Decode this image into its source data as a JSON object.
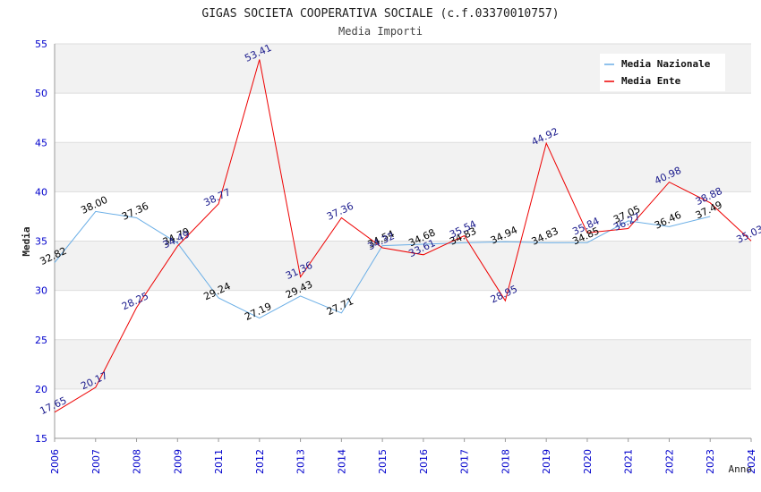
{
  "chart_data": {
    "type": "line",
    "title": "GIGAS SOCIETA COOPERATIVA SOCIALE (c.f.03370010757)",
    "subtitle": "Media Importi",
    "xlabel": "Anno",
    "ylabel": "Media",
    "ylim": [
      15,
      55
    ],
    "yticks": [
      15,
      20,
      25,
      30,
      35,
      40,
      45,
      50,
      55
    ],
    "categories": [
      "2006",
      "2007",
      "2008",
      "2009",
      "2011",
      "2012",
      "2013",
      "2014",
      "2015",
      "2016",
      "2017",
      "2018",
      "2019",
      "2020",
      "2021",
      "2022",
      "2023",
      "2024"
    ],
    "legend_position": "top-right",
    "series": [
      {
        "name": "Media Nazionale",
        "color": "#6aaee6",
        "label_color": "#000000",
        "values": [
          32.82,
          38.0,
          37.36,
          34.79,
          29.24,
          27.19,
          29.43,
          27.71,
          34.54,
          34.68,
          34.83,
          34.94,
          34.83,
          34.85,
          37.05,
          36.46,
          37.49,
          null
        ],
        "labels": [
          "32.82",
          "38.00",
          "37.36",
          "34.79",
          "29.24",
          "27.19",
          "29.43",
          "27.71",
          "34.54",
          "34.68",
          "34.83",
          "34.94",
          "34.83",
          "34.85",
          "37.05",
          "36.46",
          "37.49",
          ""
        ]
      },
      {
        "name": "Media Ente",
        "color": "#ee0000",
        "label_color": "#1a1a8c",
        "values": [
          17.65,
          20.17,
          28.25,
          34.49,
          38.77,
          53.41,
          31.36,
          37.36,
          34.32,
          33.61,
          35.54,
          28.95,
          44.92,
          35.84,
          36.27,
          40.98,
          38.88,
          35.03
        ],
        "labels": [
          "17.65",
          "20.17",
          "28.25",
          "34.49",
          "38.77",
          "53.41",
          "31.36",
          "37.36",
          "34.32",
          "33.61",
          "35.54",
          "28.95",
          "44.92",
          "35.84",
          "36.27",
          "40.98",
          "38.88",
          "35.03"
        ]
      }
    ],
    "colors": {
      "band": "#f2f2f2",
      "grid": "#dddddd",
      "axis": "#999999",
      "tick_text": "#0000cc"
    }
  }
}
